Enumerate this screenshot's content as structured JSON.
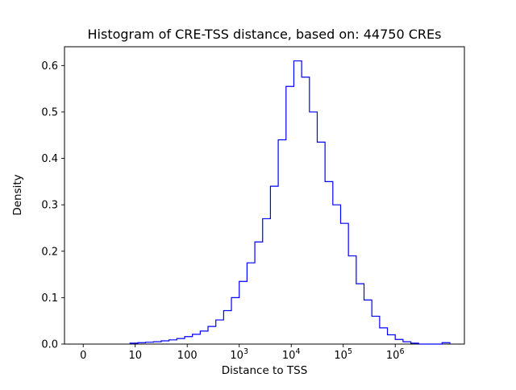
{
  "chart_data": {
    "type": "histogram-step",
    "title": "Histogram of CRE-TSS distance, based on: 44750 CREs",
    "xlabel": "Distance to TSS",
    "ylabel": "Density",
    "line_color": "#0000ff",
    "axis_color": "#000000",
    "background_color": "#ffffff",
    "grid": "off",
    "legend": "none",
    "x_scale": "log10-of-distance (linear in exponent; '0' tick sits one decade left of 10)",
    "xlim_log10": [
      -0.36,
      7.33
    ],
    "ylim": [
      0,
      0.6405
    ],
    "x_ticks": [
      {
        "u": 0,
        "label": "0"
      },
      {
        "u": 1,
        "label": "10"
      },
      {
        "u": 2,
        "label": "100"
      },
      {
        "u": 3,
        "base": "10",
        "exp": "3"
      },
      {
        "u": 4,
        "base": "10",
        "exp": "4"
      },
      {
        "u": 5,
        "base": "10",
        "exp": "5"
      },
      {
        "u": 6,
        "base": "10",
        "exp": "6"
      }
    ],
    "y_ticks": [
      {
        "v": 0.0,
        "label": "0.0"
      },
      {
        "v": 0.1,
        "label": "0.1"
      },
      {
        "v": 0.2,
        "label": "0.2"
      },
      {
        "v": 0.3,
        "label": "0.3"
      },
      {
        "v": 0.4,
        "label": "0.4"
      },
      {
        "v": 0.5,
        "label": "0.5"
      },
      {
        "v": 0.6,
        "label": "0.6"
      }
    ],
    "bin_edges_log10": [
      0.9,
      1.05,
      1.2,
      1.35,
      1.5,
      1.65,
      1.8,
      1.95,
      2.1,
      2.25,
      2.4,
      2.55,
      2.7,
      2.85,
      3.0,
      3.15,
      3.3,
      3.45,
      3.6,
      3.75,
      3.9,
      4.05,
      4.2,
      4.35,
      4.5,
      4.65,
      4.8,
      4.95,
      5.1,
      5.25,
      5.4,
      5.55,
      5.7,
      5.85,
      6.0,
      6.15,
      6.3,
      6.45,
      6.6,
      6.75,
      6.9,
      7.05
    ],
    "densities": [
      0.002,
      0.003,
      0.004,
      0.005,
      0.007,
      0.009,
      0.012,
      0.016,
      0.021,
      0.028,
      0.038,
      0.052,
      0.072,
      0.1,
      0.135,
      0.175,
      0.22,
      0.27,
      0.34,
      0.44,
      0.555,
      0.61,
      0.575,
      0.5,
      0.435,
      0.35,
      0.3,
      0.26,
      0.19,
      0.13,
      0.095,
      0.06,
      0.035,
      0.02,
      0.01,
      0.005,
      0.002,
      0,
      0,
      0,
      0.003
    ],
    "peak_density": 0.61,
    "sample_count": "44750"
  }
}
